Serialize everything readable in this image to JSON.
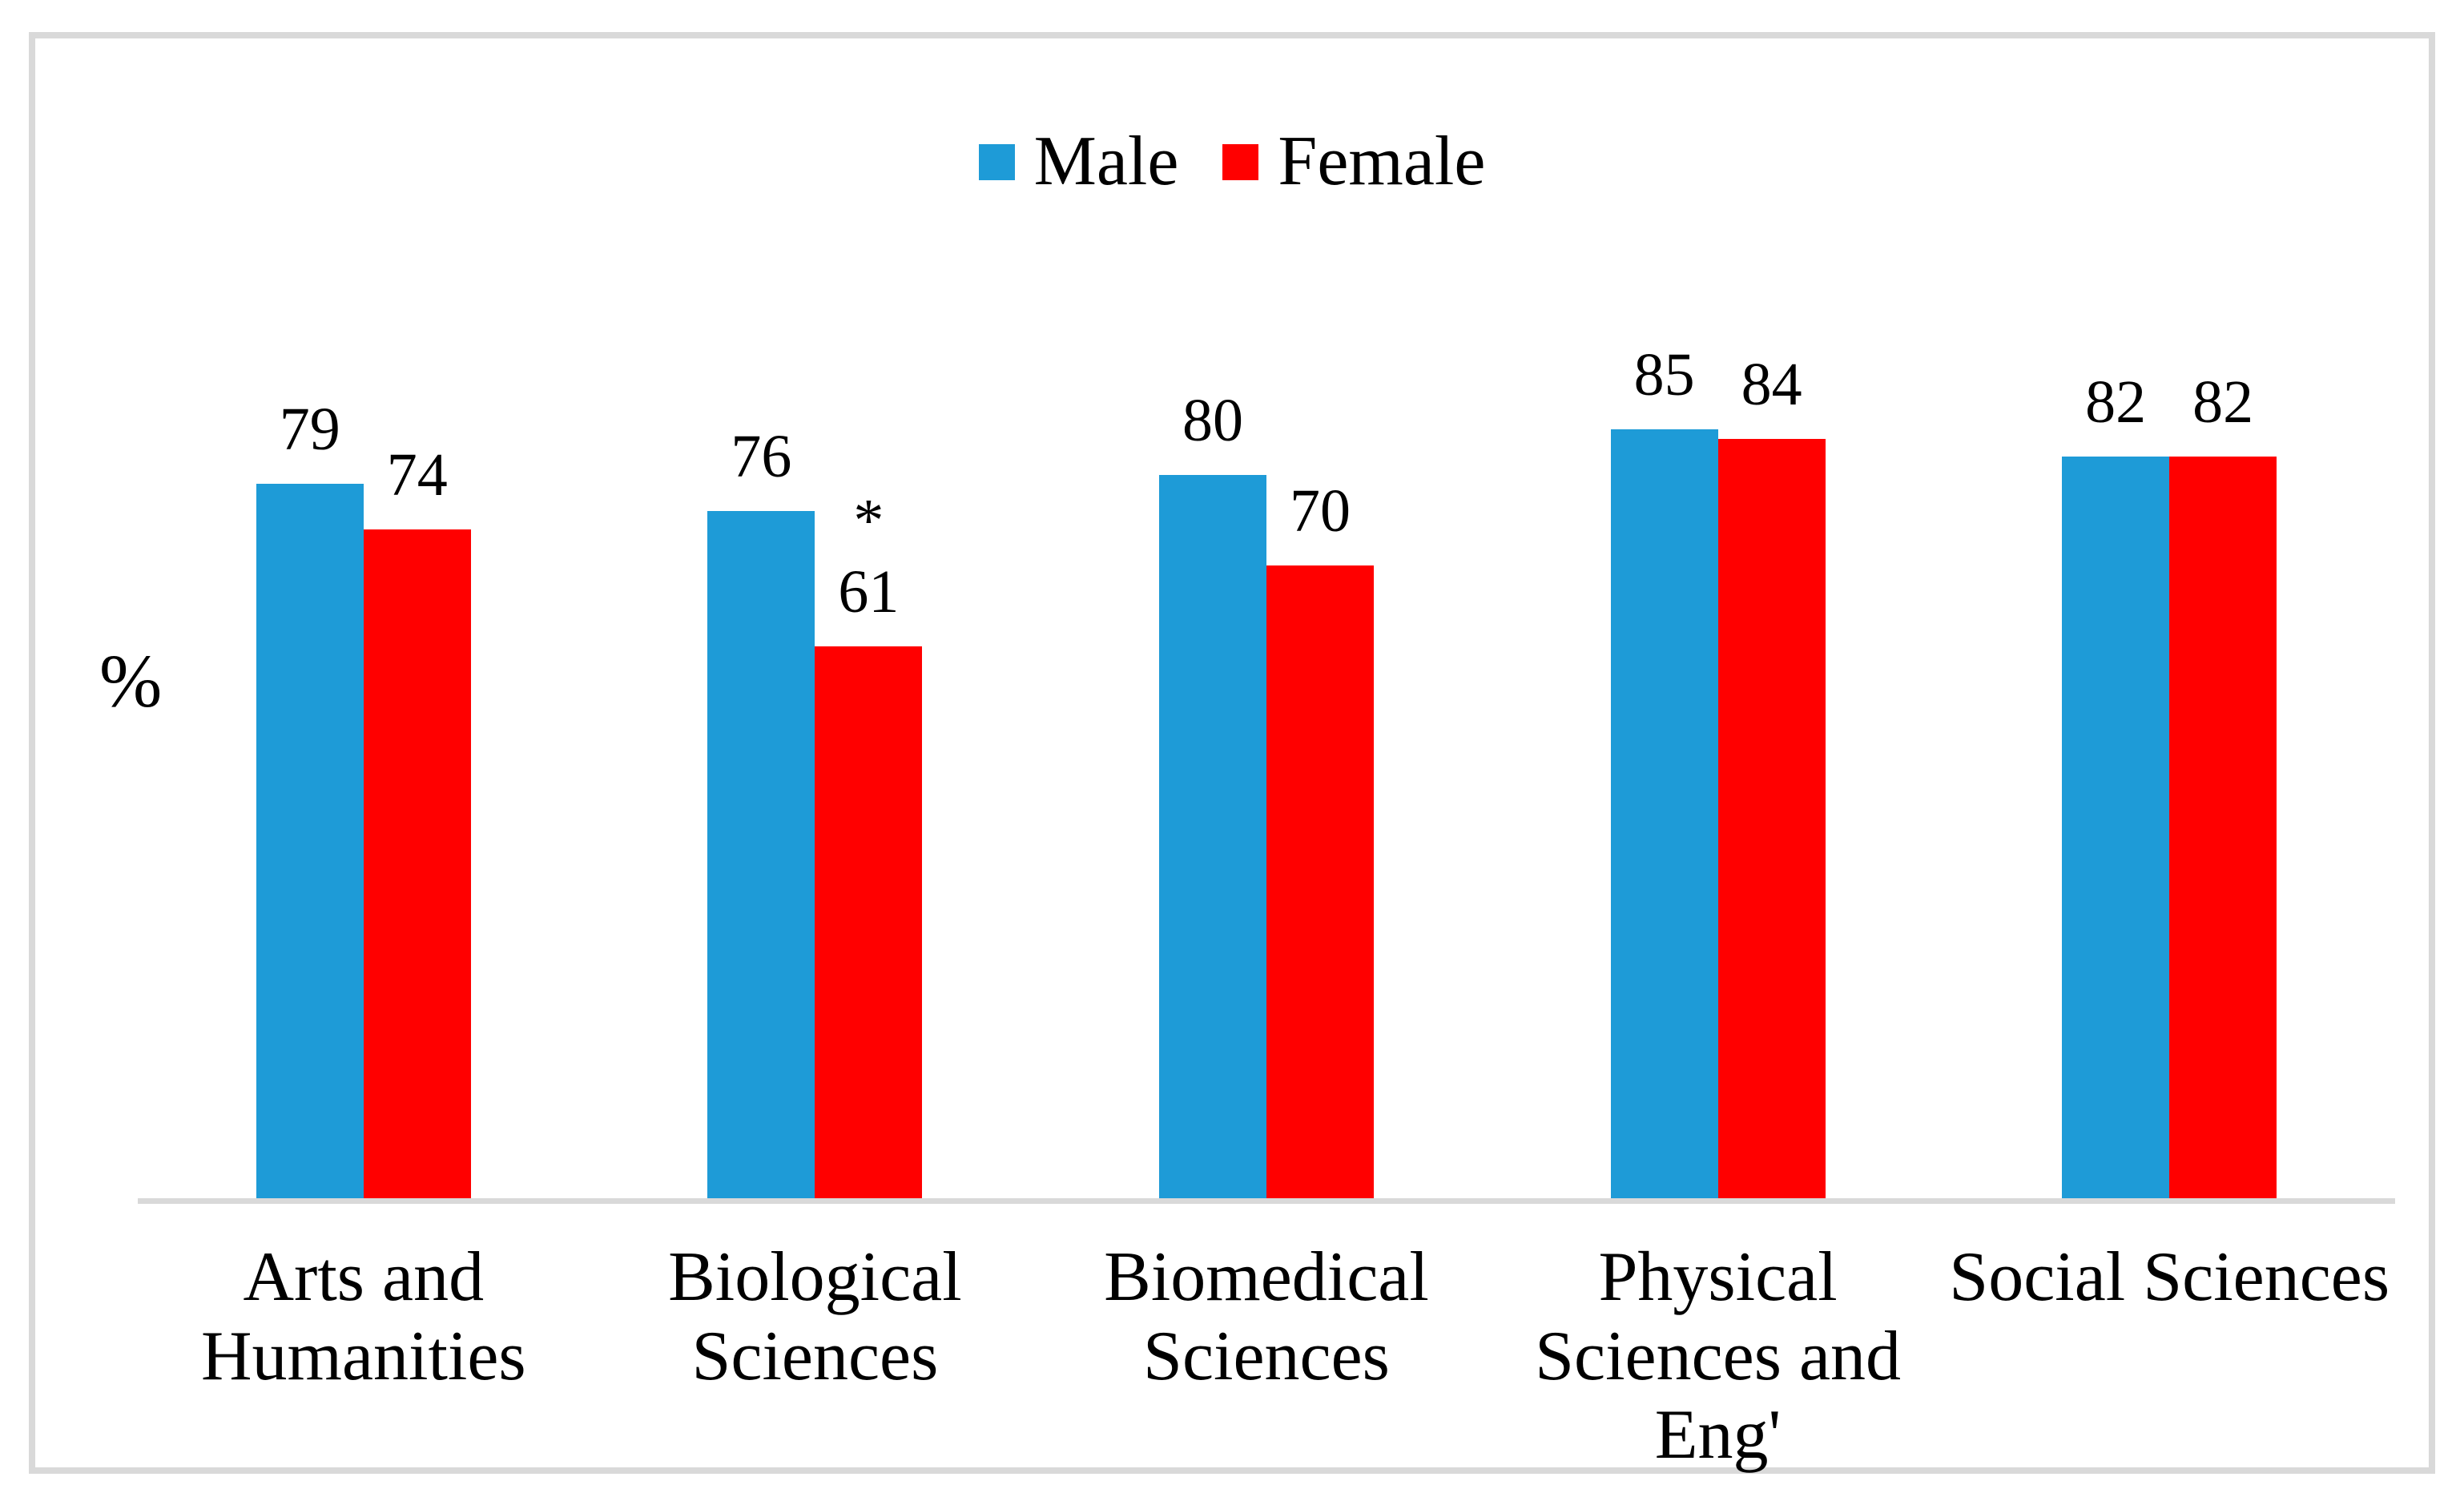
{
  "chart_data": {
    "type": "bar",
    "title": "",
    "ylabel": "%",
    "xlabel": "",
    "ylim": [
      0,
      100
    ],
    "grid": false,
    "legend_position": "top-center",
    "data_labels": "outside-end",
    "categories": [
      "Arts and\nHumanities",
      "Biological\nSciences",
      "Biomedical\nSciences",
      "Physical\nSciences and\nEng'",
      "Social Sciences"
    ],
    "series": [
      {
        "name": "Male",
        "color": "#1E9BD7",
        "values": [
          79,
          76,
          80,
          85,
          82
        ],
        "annotations": [
          "",
          "",
          "",
          "",
          ""
        ]
      },
      {
        "name": "Female",
        "color": "#FF0000",
        "values": [
          74,
          61,
          70,
          84,
          82
        ],
        "annotations": [
          "",
          "*",
          "",
          "",
          ""
        ]
      }
    ],
    "axis_color": "#D9D9D9",
    "frame_color": "#D9D9D9"
  }
}
